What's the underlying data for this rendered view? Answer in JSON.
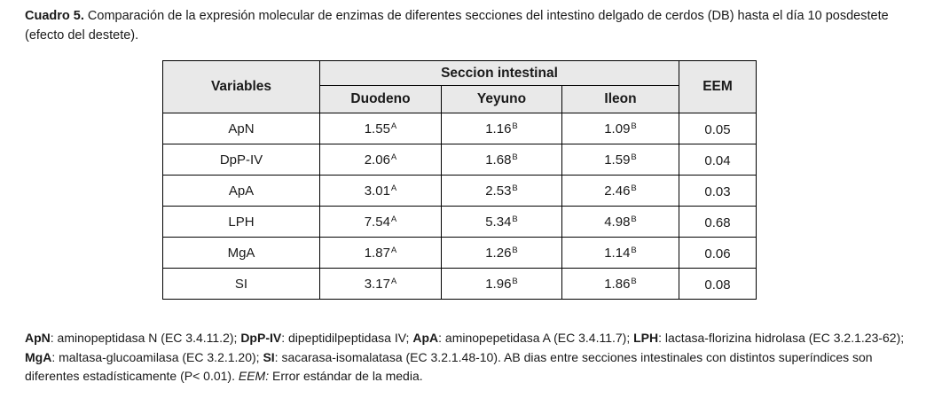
{
  "caption": {
    "label": "Cuadro 5.",
    "text": "Comparación de la expresión molecular de enzimas de diferentes secciones del intestino delgado de cerdos (DB) hasta el día 10 posdestete (efecto del destete)."
  },
  "table": {
    "header": {
      "variables": "Variables",
      "section_group": "Seccion intestinal",
      "columns": [
        "Duodeno",
        "Yeyuno",
        "Ileon"
      ],
      "eem": "EEM"
    },
    "rows": [
      {
        "name": "ApN",
        "duodeno": "1.55",
        "duodeno_sup": "A",
        "yeyuno": "1.16",
        "yeyuno_sup": "B",
        "ileon": "1.09",
        "ileon_sup": "B",
        "eem": "0.05"
      },
      {
        "name": "DpP-IV",
        "duodeno": "2.06",
        "duodeno_sup": "A",
        "yeyuno": "1.68",
        "yeyuno_sup": "B",
        "ileon": "1.59",
        "ileon_sup": "B",
        "eem": "0.04"
      },
      {
        "name": "ApA",
        "duodeno": "3.01",
        "duodeno_sup": "A",
        "yeyuno": "2.53",
        "yeyuno_sup": "B",
        "ileon": "2.46",
        "ileon_sup": "B",
        "eem": "0.03"
      },
      {
        "name": "LPH",
        "duodeno": "7.54",
        "duodeno_sup": "A",
        "yeyuno": "5.34",
        "yeyuno_sup": "B",
        "ileon": "4.98",
        "ileon_sup": "B",
        "eem": "0.68"
      },
      {
        "name": "MgA",
        "duodeno": "1.87",
        "duodeno_sup": "A",
        "yeyuno": "1.26",
        "yeyuno_sup": "B",
        "ileon": "1.14",
        "ileon_sup": "B",
        "eem": "0.06"
      },
      {
        "name": "SI",
        "duodeno": "3.17",
        "duodeno_sup": "A",
        "yeyuno": "1.96",
        "yeyuno_sup": "B",
        "ileon": "1.86",
        "ileon_sup": "B",
        "eem": "0.08"
      }
    ]
  },
  "footnote": {
    "segments": [
      {
        "text": "ApN"
      },
      {
        "text": ": aminopeptidasa N (EC 3.4.11.2); "
      },
      {
        "text": "DpP-IV"
      },
      {
        "text": ": dipeptidilpeptidasa IV;  "
      },
      {
        "text": "ApA"
      },
      {
        "text": ": aminopepetidasa A (EC 3.4.11.7); "
      },
      {
        "text": "LPH"
      },
      {
        "text": ": lactasa-florizina hidrolasa (EC 3.2.1.23-62); "
      },
      {
        "text": "MgA"
      },
      {
        "text": ": maltasa-glucoamilasa (EC 3.2.1.20); "
      },
      {
        "text": "SI"
      },
      {
        "text": ": sacarasa-isomalatasa (EC 3.2.1.48-10).  AB dias entre secciones intestinales con distintos superíndices son diferentes estadísticamente  (P< 0.01).  "
      },
      {
        "text": "EEM:"
      },
      {
        "text": " Error estándar de la media."
      }
    ]
  },
  "colors": {
    "header_bg": "#e9e9e9",
    "border": "#000000",
    "text": "#1a1a1a"
  }
}
